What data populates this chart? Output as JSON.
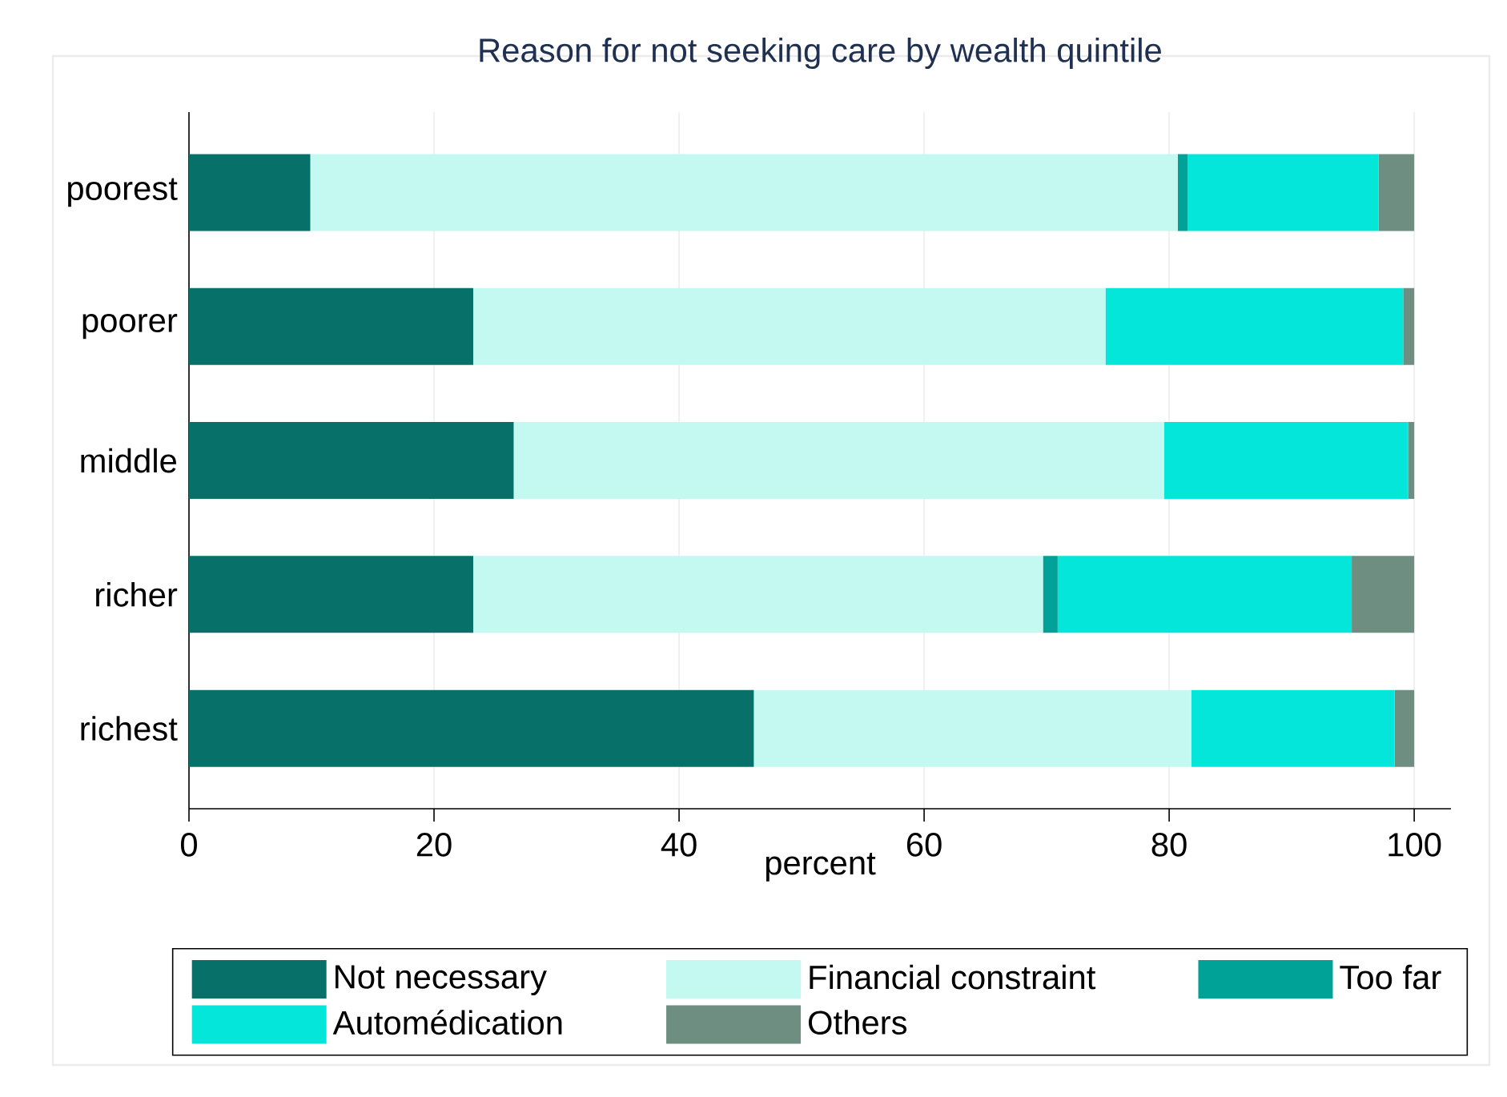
{
  "chart_data": {
    "type": "bar",
    "orientation": "horizontal",
    "stacked": true,
    "title": "Reason for not seeking care by wealth quintile",
    "xlabel": "percent",
    "categories": [
      "poorest",
      "poorer",
      "middle",
      "richer",
      "richest"
    ],
    "series": [
      {
        "name": "Not necessary",
        "color": "#077068",
        "values": [
          9.9,
          23.2,
          26.5,
          23.2,
          46.1
        ]
      },
      {
        "name": "Financial constraint",
        "color": "#c4f9f2",
        "values": [
          70.8,
          51.6,
          53.1,
          46.5,
          35.7
        ]
      },
      {
        "name": "Too far",
        "color": "#00a196",
        "values": [
          0.8,
          0,
          0,
          1.2,
          0
        ]
      },
      {
        "name": "Automédication",
        "color": "#04e6da",
        "values": [
          15.6,
          24.3,
          19.9,
          24.0,
          16.6
        ]
      },
      {
        "name": "Others",
        "color": "#6d8e81",
        "values": [
          2.9,
          0.9,
          0.5,
          5.1,
          1.6
        ]
      }
    ],
    "xlim": [
      0,
      103
    ],
    "xticks": [
      0,
      20,
      40,
      60,
      80,
      100
    ],
    "grid": "x",
    "legend": "bottom"
  }
}
